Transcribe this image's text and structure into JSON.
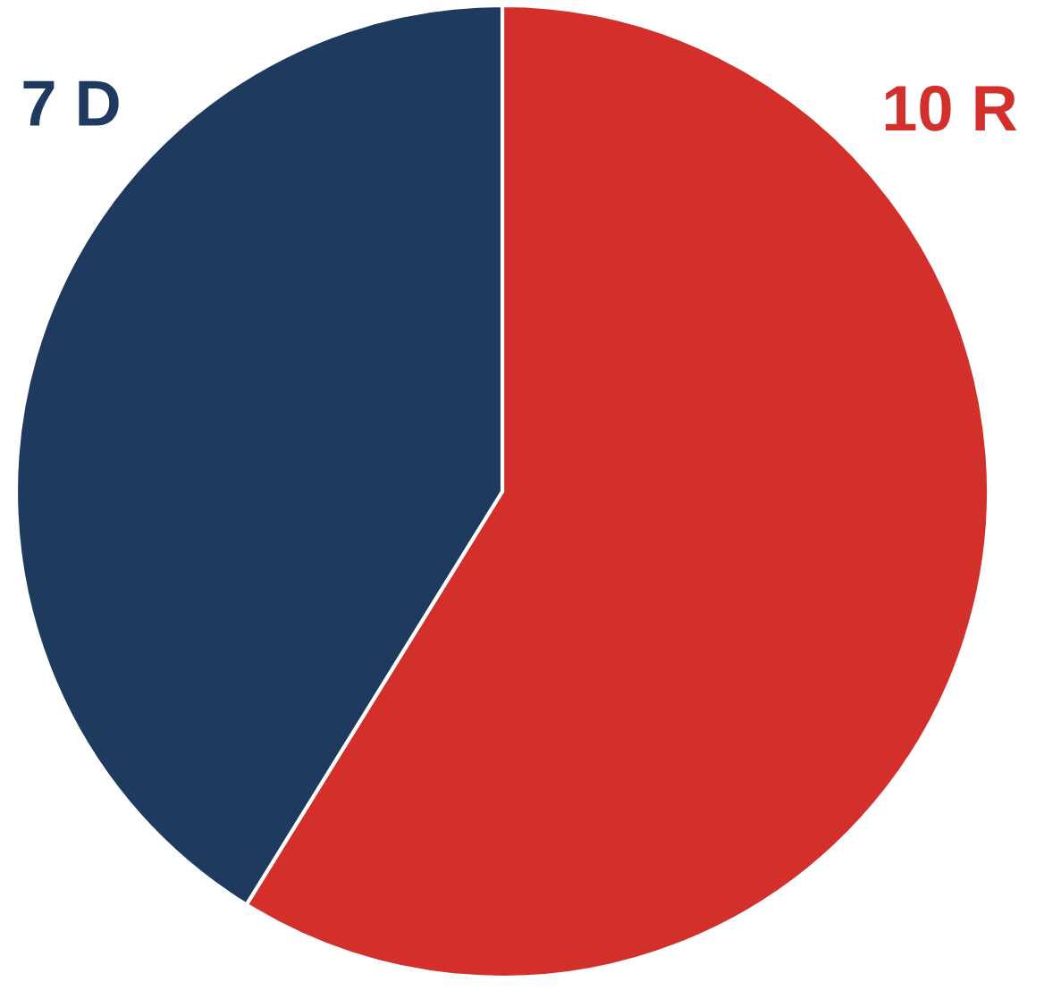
{
  "chart_data": {
    "type": "pie",
    "categories": [
      "R",
      "D"
    ],
    "values": [
      10,
      7
    ],
    "value_labels": [
      "10",
      "7"
    ],
    "colors": [
      "#d3302c",
      "#1e3a5f"
    ]
  }
}
